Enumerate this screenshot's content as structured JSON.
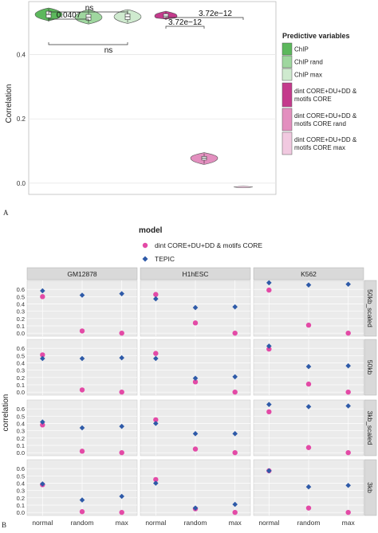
{
  "colors": {
    "chip": "#5cb85c",
    "chip_rand": "#9fd79f",
    "chip_max": "#cfeacf",
    "dint": "#c43a8c",
    "dint_rand": "#e38fbf",
    "dint_max": "#f1c9e0",
    "panel_bg": "#ebebeb",
    "strip_bg": "#d9d9d9",
    "grid": "#ffffff",
    "model_dint": "#e34aa6",
    "model_tepic": "#2e5aa8"
  },
  "chart_data": [
    {
      "type": "violin",
      "panel_label": "A",
      "ylabel": "Correlation",
      "ylim": [
        -0.03,
        0.56
      ],
      "yticks": [
        "0.0",
        "0.2",
        "0.4"
      ],
      "ytick_values": [
        0.0,
        0.2,
        0.4
      ],
      "legend": {
        "title": "Predictive variables",
        "position": "right",
        "entries": [
          {
            "label": "ChIP",
            "color_key": "chip"
          },
          {
            "label": "ChIP rand",
            "color_key": "chip_rand"
          },
          {
            "label": "ChIP max",
            "color_key": "chip_max"
          },
          {
            "label": "dint CORE+DU+DD & motifs CORE",
            "color_key": "dint"
          },
          {
            "label": "dint CORE+DU+DD & motifs CORE rand",
            "color_key": "dint_rand"
          },
          {
            "label": "dint CORE+DU+DD & motifs CORE max",
            "color_key": "dint_max"
          }
        ]
      },
      "series": [
        {
          "name": "ChIP",
          "median": 0.525,
          "q1": 0.515,
          "q3": 0.535,
          "min": 0.505,
          "max": 0.545
        },
        {
          "name": "ChIP rand",
          "median": 0.516,
          "q1": 0.507,
          "q3": 0.525,
          "min": 0.495,
          "max": 0.54
        },
        {
          "name": "ChIP max",
          "median": 0.518,
          "q1": 0.509,
          "q3": 0.527,
          "min": 0.497,
          "max": 0.54
        },
        {
          "name": "dint CORE+DU+DD & motifs CORE",
          "median": 0.52,
          "q1": 0.515,
          "q3": 0.527,
          "min": 0.51,
          "max": 0.535
        },
        {
          "name": "dint CORE+DU+DD & motifs CORE rand",
          "median": 0.078,
          "q1": 0.072,
          "q3": 0.083,
          "min": 0.058,
          "max": 0.095
        },
        {
          "name": "dint CORE+DU+DD & motifs CORE max",
          "median": -0.012,
          "q1": -0.013,
          "q3": -0.011,
          "min": -0.014,
          "max": -0.01
        }
      ],
      "annotations": [
        {
          "text": "0.0407",
          "from": 1,
          "to": 2
        },
        {
          "text": "ns",
          "from": 1,
          "to": 3
        },
        {
          "text": "ns",
          "from": 1,
          "to": 3,
          "below": true
        },
        {
          "text": "3.72e−12",
          "from": 4,
          "to": 5
        },
        {
          "text": "3.72e−12",
          "from": 4,
          "to": 6
        }
      ]
    },
    {
      "type": "faceted_scatter",
      "panel_label": "B",
      "ylabel": "correlation",
      "ylim": [
        -0.02,
        0.7
      ],
      "yticks": [
        "0.0",
        "0.1",
        "0.2",
        "0.3",
        "0.4",
        "0.5",
        "0.6"
      ],
      "ytick_values": [
        0.0,
        0.1,
        0.2,
        0.3,
        0.4,
        0.5,
        0.6
      ],
      "categories": [
        "normal",
        "random",
        "max"
      ],
      "columns": [
        "GM12878",
        "H1hESC",
        "K562"
      ],
      "rows": [
        "50kb_scaled",
        "50kb",
        "3kb_scaled",
        "3kb"
      ],
      "legend": {
        "title": "model",
        "entries": [
          {
            "label": "dint CORE+DU+DD & motifs CORE",
            "color_key": "model_dint",
            "shape": "circle"
          },
          {
            "label": "TEPIC",
            "color_key": "model_tepic",
            "shape": "diamond"
          }
        ]
      },
      "series": [
        {
          "name": "dint CORE+DU+DD & motifs CORE",
          "values": [
            [
              [
                0.5,
                0.03,
                0.0
              ],
              [
                0.53,
                0.14,
                0.0
              ],
              [
                0.59,
                0.11,
                0.0
              ]
            ],
            [
              [
                0.51,
                0.03,
                0.0
              ],
              [
                0.53,
                0.14,
                0.0
              ],
              [
                0.59,
                0.11,
                0.0
              ]
            ],
            [
              [
                0.38,
                0.02,
                0.0
              ],
              [
                0.45,
                0.05,
                0.0
              ],
              [
                0.56,
                0.07,
                0.0
              ]
            ],
            [
              [
                0.38,
                0.01,
                0.0
              ],
              [
                0.45,
                0.05,
                0.0
              ],
              [
                0.57,
                0.06,
                0.0
              ]
            ]
          ]
        },
        {
          "name": "TEPIC",
          "values": [
            [
              [
                0.58,
                0.52,
                0.54
              ],
              [
                0.47,
                0.35,
                0.36
              ],
              [
                0.69,
                0.66,
                0.67
              ]
            ],
            [
              [
                0.46,
                0.46,
                0.47
              ],
              [
                0.46,
                0.19,
                0.21
              ],
              [
                0.63,
                0.35,
                0.36
              ]
            ],
            [
              [
                0.42,
                0.34,
                0.36
              ],
              [
                0.4,
                0.26,
                0.26
              ],
              [
                0.66,
                0.63,
                0.64
              ]
            ],
            [
              [
                0.39,
                0.17,
                0.22
              ],
              [
                0.4,
                0.06,
                0.11
              ],
              [
                0.57,
                0.35,
                0.37
              ]
            ]
          ]
        }
      ]
    }
  ]
}
